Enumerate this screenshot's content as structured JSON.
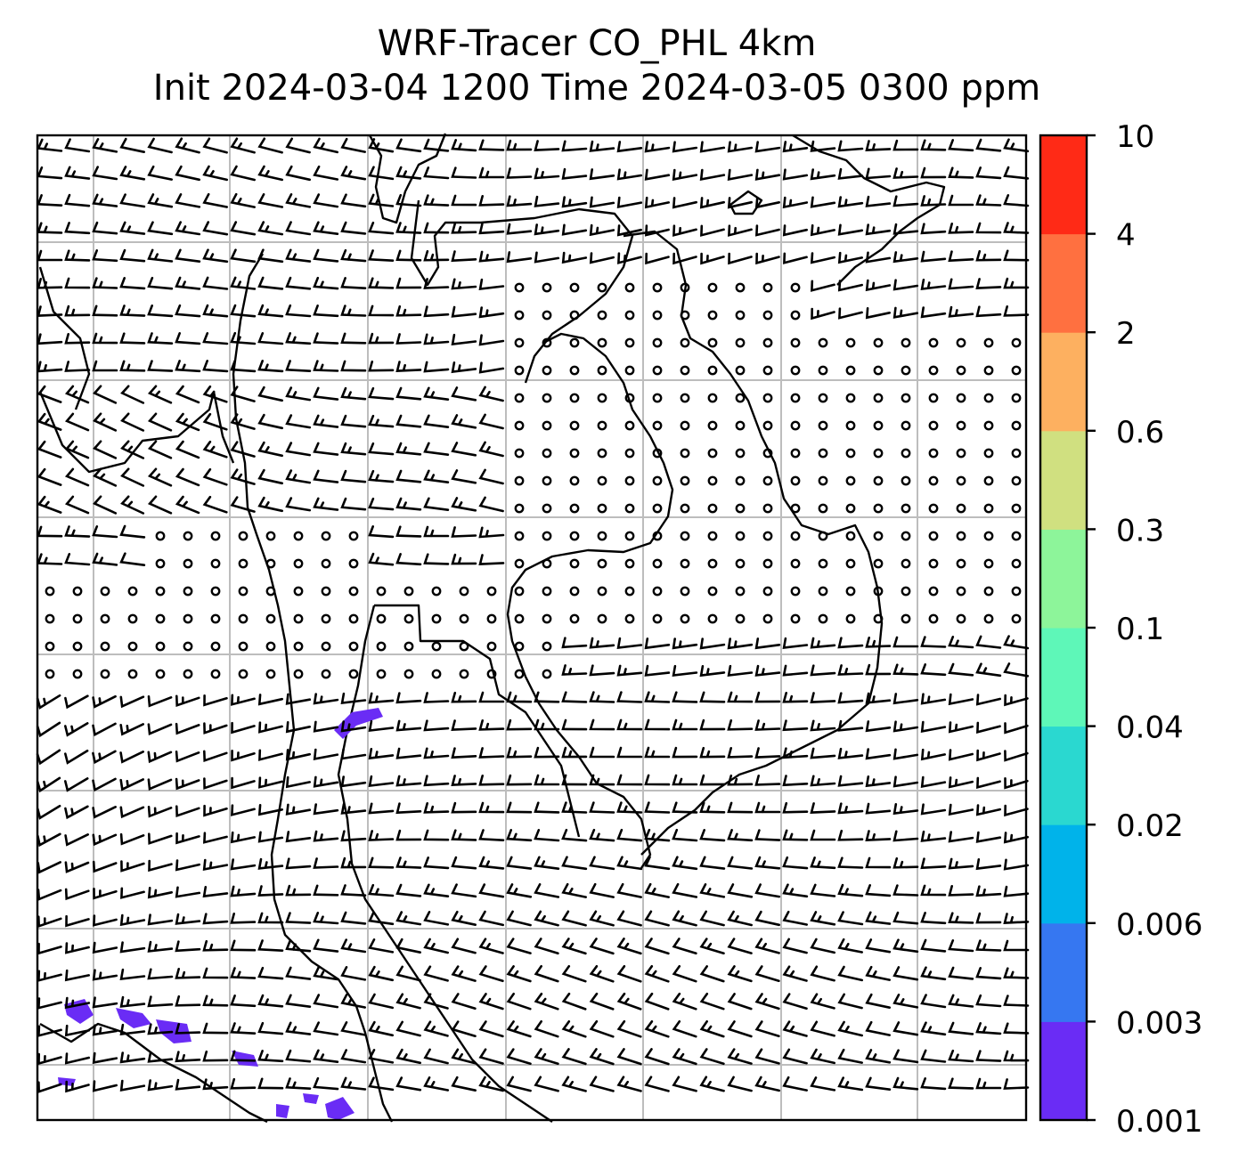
{
  "title": {
    "line1": "WRF-Tracer CO_PHL 4km",
    "line2": "Init 2024-03-04 1200 Time 2024-03-05 0300 ppm"
  },
  "colorbar": {
    "levels": [
      "0.001",
      "0.003",
      "0.006",
      "0.02",
      "0.04",
      "0.1",
      "0.3",
      "0.6",
      "2",
      "4",
      "10"
    ],
    "colors": [
      "#6a2cf5",
      "#3677f1",
      "#00b3ea",
      "#2ad8d0",
      "#5ef7b8",
      "#8df59a",
      "#d0e080",
      "#fdb060",
      "#ff7040",
      "#ff2a16"
    ]
  },
  "map": {
    "gridline_color": "#bdbdbd",
    "plume_color": "#6a2cf5"
  }
}
